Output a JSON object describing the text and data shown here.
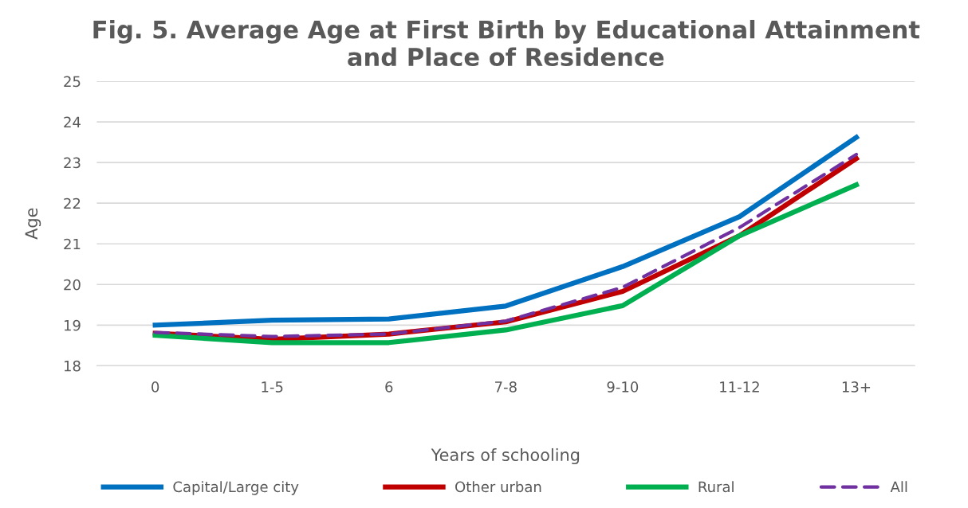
{
  "chart_data": {
    "type": "line",
    "title": "Fig. 5. Average Age at First Birth by Educational Attainment\nand Place of Residence",
    "xlabel": "Years of schooling",
    "ylabel": "Age",
    "categories": [
      "0",
      "1-5",
      "6",
      "7-8",
      "9-10",
      "11-12",
      "13+"
    ],
    "series": [
      {
        "name": "Capital/Large city",
        "color": "#0070c0",
        "values": [
          19.0,
          19.12,
          19.15,
          19.47,
          20.44,
          21.67,
          23.62
        ]
      },
      {
        "name": "Other urban",
        "color": "#c00000",
        "values": [
          18.8,
          18.65,
          18.78,
          19.08,
          19.83,
          21.2,
          23.1
        ]
      },
      {
        "name": "Rural",
        "color": "#00b050",
        "values": [
          18.75,
          18.57,
          18.57,
          18.88,
          19.48,
          21.2,
          22.45
        ]
      },
      {
        "name": "All",
        "color": "#7030a0",
        "line_style": "dashed",
        "values": [
          18.82,
          18.72,
          18.78,
          19.1,
          19.93,
          21.4,
          23.2
        ]
      }
    ],
    "ylim": [
      18,
      25
    ],
    "yticks": [
      18,
      19,
      20,
      21,
      22,
      23,
      24,
      25
    ],
    "grid": "y",
    "legend": "bottom",
    "line_style": "solid",
    "marker": "none"
  }
}
